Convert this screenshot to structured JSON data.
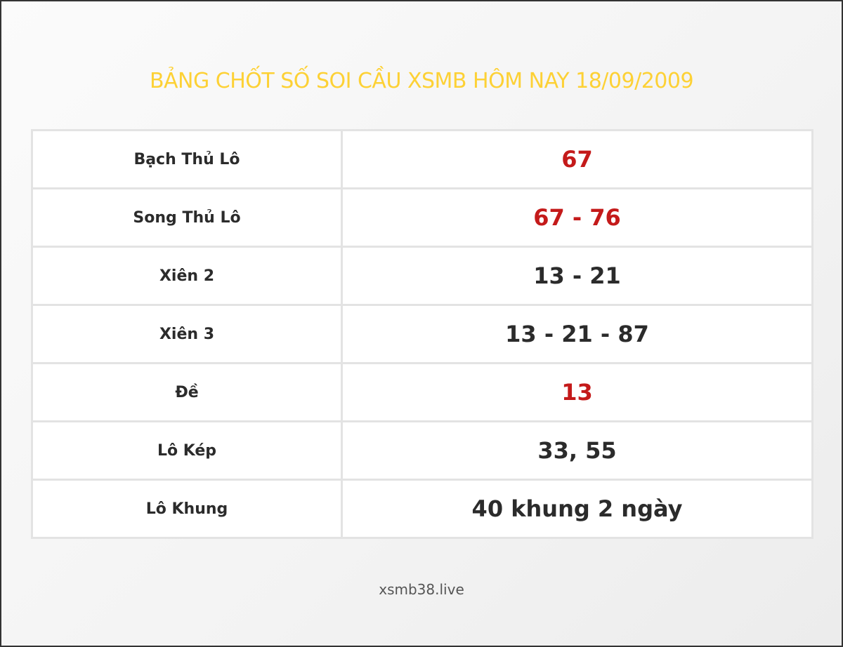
{
  "title": "BẢNG CHỐT SỐ SOI CẦU XSMB HÔM NAY 18/09/2009",
  "rows": [
    {
      "label": "Bạch Thủ Lô",
      "value": "67",
      "highlight": true
    },
    {
      "label": "Song Thủ Lô",
      "value": "67 - 76",
      "highlight": true
    },
    {
      "label": "Xiên 2",
      "value": "13 - 21",
      "highlight": false
    },
    {
      "label": "Xiên 3",
      "value": "13 - 21 - 87",
      "highlight": false
    },
    {
      "label": "Đề",
      "value": "13",
      "highlight": true
    },
    {
      "label": "Lô Kép",
      "value": "33, 55",
      "highlight": false
    },
    {
      "label": "Lô Khung",
      "value": "40 khung 2 ngày",
      "highlight": false
    }
  ],
  "footer": "xsmb38.live",
  "colors": {
    "title": "#fdd135",
    "highlight": "#c41a1a",
    "text": "#2b2b2b"
  }
}
